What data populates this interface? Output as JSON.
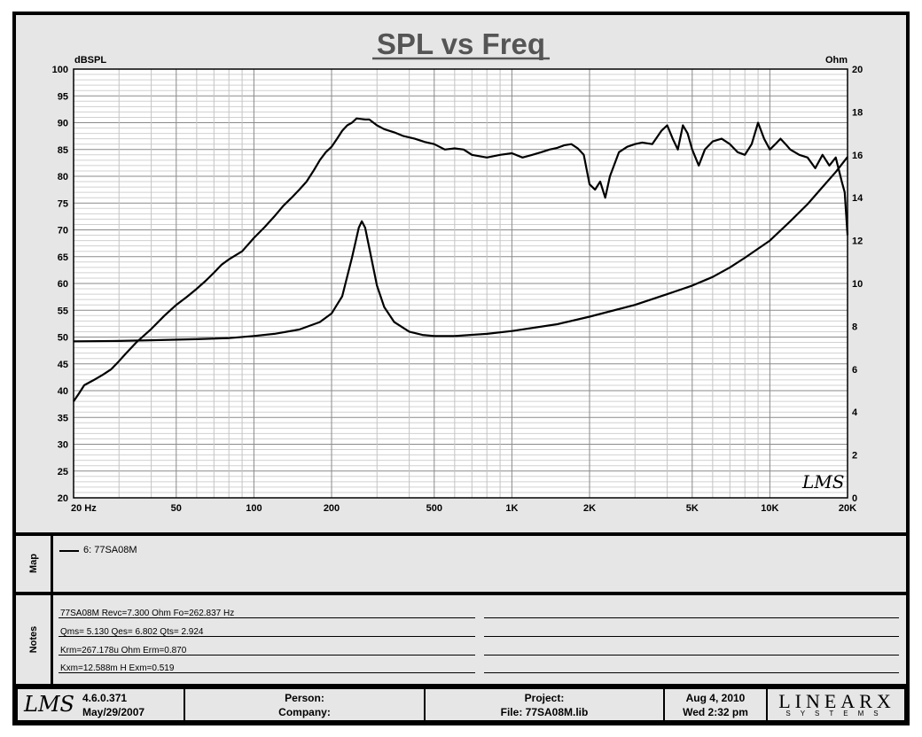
{
  "chart_data": {
    "type": "line",
    "title": "SPL vs Freq",
    "ylabel_left": "dBSPL",
    "ylabel_right": "Ohm",
    "xscale": "log",
    "xlim": [
      20,
      20000
    ],
    "ylim_left": [
      20,
      100
    ],
    "ylim_right": [
      0,
      20
    ],
    "grid": true,
    "x_tick_labels": [
      "20  Hz",
      "50",
      "100",
      "200",
      "500",
      "1K",
      "2K",
      "5K",
      "10K",
      "20K"
    ],
    "x_tick_values": [
      20,
      50,
      100,
      200,
      500,
      1000,
      2000,
      5000,
      10000,
      20000
    ],
    "y_left_ticks": [
      20,
      25,
      30,
      35,
      40,
      45,
      50,
      55,
      60,
      65,
      70,
      75,
      80,
      85,
      90,
      95,
      100
    ],
    "y_right_ticks": [
      0,
      2,
      4,
      6,
      8,
      10,
      12,
      14,
      16,
      18,
      20
    ],
    "series": [
      {
        "axis": "left",
        "points": [
          [
            20,
            38
          ],
          [
            21,
            39.5
          ],
          [
            22,
            41
          ],
          [
            24,
            42
          ],
          [
            26,
            43
          ],
          [
            28,
            44
          ],
          [
            30,
            45.5
          ],
          [
            32,
            47
          ],
          [
            35,
            49
          ],
          [
            40,
            51.5
          ],
          [
            45,
            54
          ],
          [
            50,
            56
          ],
          [
            55,
            57.5
          ],
          [
            60,
            59
          ],
          [
            65,
            60.5
          ],
          [
            70,
            62
          ],
          [
            75,
            63.5
          ],
          [
            80,
            64.5
          ],
          [
            90,
            66
          ],
          [
            100,
            68.5
          ],
          [
            110,
            70.5
          ],
          [
            120,
            72.5
          ],
          [
            130,
            74.5
          ],
          [
            140,
            76
          ],
          [
            150,
            77.5
          ],
          [
            160,
            79
          ],
          [
            170,
            81
          ],
          [
            180,
            83
          ],
          [
            190,
            84.5
          ],
          [
            200,
            85.5
          ],
          [
            210,
            87
          ],
          [
            220,
            88.5
          ],
          [
            230,
            89.5
          ],
          [
            240,
            90
          ],
          [
            250,
            90.8
          ],
          [
            260,
            90.7
          ],
          [
            270,
            90.6
          ],
          [
            280,
            90.6
          ],
          [
            300,
            89.5
          ],
          [
            320,
            88.8
          ],
          [
            350,
            88.2
          ],
          [
            380,
            87.5
          ],
          [
            420,
            87
          ],
          [
            460,
            86.4
          ],
          [
            500,
            86
          ],
          [
            550,
            85
          ],
          [
            600,
            85.2
          ],
          [
            650,
            85
          ],
          [
            700,
            84
          ],
          [
            800,
            83.5
          ],
          [
            900,
            84
          ],
          [
            1000,
            84.3
          ],
          [
            1100,
            83.5
          ],
          [
            1200,
            84
          ],
          [
            1300,
            84.5
          ],
          [
            1400,
            85
          ],
          [
            1500,
            85.3
          ],
          [
            1600,
            85.8
          ],
          [
            1700,
            86
          ],
          [
            1800,
            85.2
          ],
          [
            1900,
            84
          ],
          [
            2000,
            78.5
          ],
          [
            2100,
            77.5
          ],
          [
            2200,
            79
          ],
          [
            2300,
            76
          ],
          [
            2400,
            80
          ],
          [
            2600,
            84.5
          ],
          [
            2800,
            85.5
          ],
          [
            3000,
            86
          ],
          [
            3200,
            86.3
          ],
          [
            3500,
            86
          ],
          [
            3800,
            88.5
          ],
          [
            4000,
            89.5
          ],
          [
            4200,
            87
          ],
          [
            4400,
            85
          ],
          [
            4600,
            89.5
          ],
          [
            4800,
            88
          ],
          [
            5000,
            85
          ],
          [
            5300,
            82
          ],
          [
            5600,
            85
          ],
          [
            6000,
            86.5
          ],
          [
            6500,
            87
          ],
          [
            7000,
            86
          ],
          [
            7500,
            84.5
          ],
          [
            8000,
            84
          ],
          [
            8500,
            86
          ],
          [
            9000,
            90
          ],
          [
            9500,
            87
          ],
          [
            10000,
            85
          ],
          [
            10500,
            86
          ],
          [
            11000,
            87
          ],
          [
            11500,
            86
          ],
          [
            12000,
            85
          ],
          [
            13000,
            84
          ],
          [
            14000,
            83.5
          ],
          [
            15000,
            81.5
          ],
          [
            16000,
            84
          ],
          [
            17000,
            82
          ],
          [
            18000,
            83.5
          ],
          [
            19000,
            79
          ],
          [
            19500,
            77
          ],
          [
            20000,
            69
          ]
        ]
      },
      {
        "axis": "right",
        "points": [
          [
            20,
            7.3
          ],
          [
            30,
            7.32
          ],
          [
            40,
            7.35
          ],
          [
            60,
            7.4
          ],
          [
            80,
            7.45
          ],
          [
            100,
            7.55
          ],
          [
            120,
            7.65
          ],
          [
            150,
            7.85
          ],
          [
            180,
            8.2
          ],
          [
            200,
            8.6
          ],
          [
            220,
            9.4
          ],
          [
            240,
            11.2
          ],
          [
            255,
            12.6
          ],
          [
            262,
            12.9
          ],
          [
            270,
            12.6
          ],
          [
            285,
            11.2
          ],
          [
            300,
            9.9
          ],
          [
            320,
            8.9
          ],
          [
            350,
            8.2
          ],
          [
            400,
            7.75
          ],
          [
            450,
            7.6
          ],
          [
            500,
            7.55
          ],
          [
            600,
            7.55
          ],
          [
            800,
            7.65
          ],
          [
            1000,
            7.78
          ],
          [
            1500,
            8.1
          ],
          [
            2000,
            8.45
          ],
          [
            3000,
            9.0
          ],
          [
            4000,
            9.5
          ],
          [
            5000,
            9.9
          ],
          [
            6000,
            10.3
          ],
          [
            7000,
            10.75
          ],
          [
            8000,
            11.2
          ],
          [
            10000,
            12.0
          ],
          [
            12000,
            12.9
          ],
          [
            14000,
            13.7
          ],
          [
            16000,
            14.5
          ],
          [
            18000,
            15.2
          ],
          [
            20000,
            15.9
          ]
        ]
      }
    ]
  },
  "watermark": "LMS",
  "map": {
    "section_label": "Map",
    "legend_entry": "6: 77SA08M"
  },
  "notes": {
    "section_label": "Notes",
    "lines": [
      "77SA08M  Revc=7.300  Ohm   Fo=262.837  Hz",
      "Qms= 5.130   Qes= 6.802   Qts= 2.924",
      "Krm=267.178u  Ohm   Erm=0.870",
      "Kxm=12.588m  H   Exm=0.519"
    ]
  },
  "footer": {
    "logo": "LMS",
    "version": "4.6.0.371",
    "version_date": "May/29/2007",
    "person_label": "Person:",
    "company_label": "Company:",
    "project_label": "Project:",
    "file_label": "File: 77SA08M.lib",
    "date": "Aug  4, 2010",
    "time": "Wed  2:32 pm",
    "brand_main": "LINEARX",
    "brand_sub": "SYSTEMS"
  }
}
